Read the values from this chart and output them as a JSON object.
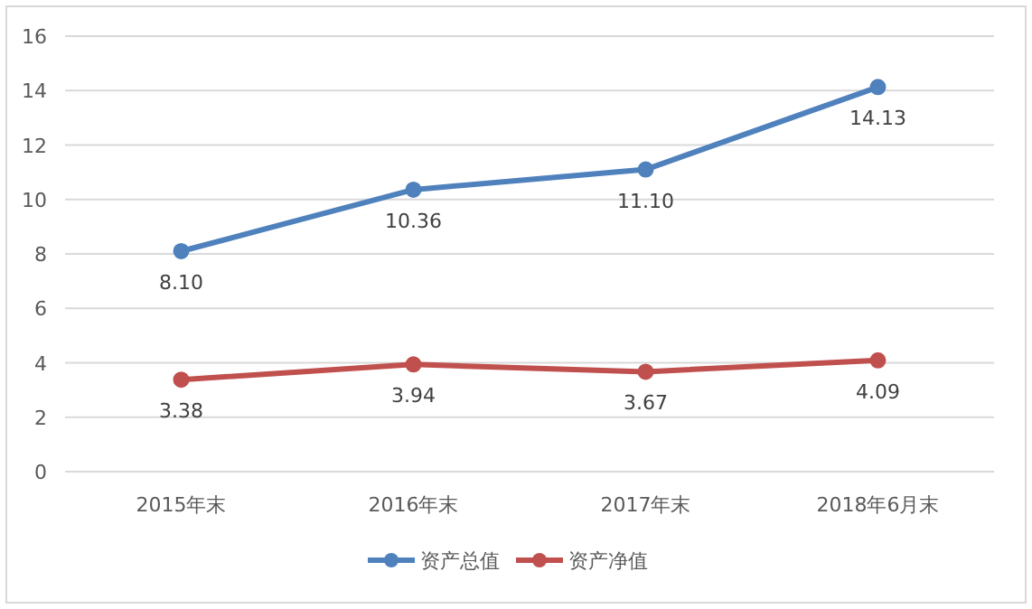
{
  "chart_data": {
    "type": "line",
    "categories": [
      "2015年末",
      "2016年末",
      "2017年末",
      "2018年6月末"
    ],
    "series": [
      {
        "name": "资产总值",
        "color": "#4f81bd",
        "values": [
          8.1,
          10.36,
          11.1,
          14.13
        ],
        "value_labels": [
          "8.10",
          "10.36",
          "11.10",
          "14.13"
        ]
      },
      {
        "name": "资产净值",
        "color": "#c0504d",
        "values": [
          3.38,
          3.94,
          3.67,
          4.09
        ],
        "value_labels": [
          "3.38",
          "3.94",
          "3.67",
          "4.09"
        ]
      }
    ],
    "ylim": [
      0,
      16
    ],
    "yticks": [
      0,
      2,
      4,
      6,
      8,
      10,
      12,
      14,
      16
    ],
    "grid": "y",
    "legend": "bottom",
    "marker": "circle",
    "line_style": "solid"
  }
}
